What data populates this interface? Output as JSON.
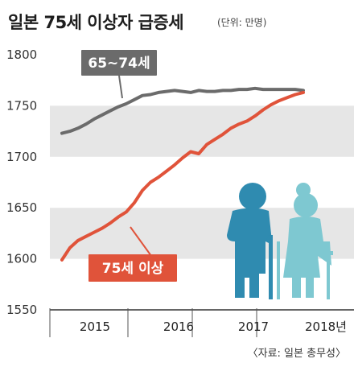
{
  "header": {
    "title": "일본 75세 이상자 급증세",
    "unit": "(단위: 만명)"
  },
  "footer": {
    "source": "〈자료: 일본 총무성〉"
  },
  "colors": {
    "band": "#e6e6e6",
    "series_65_74": "#6b6b6b",
    "series_75_plus": "#e0533a",
    "figure_left": "#2f8bb0",
    "figure_right": "#7ec8d1"
  },
  "illustration": {
    "icons": [
      "elderly-man-icon",
      "elderly-woman-icon"
    ]
  },
  "chart_data": {
    "type": "line",
    "title": "일본 75세 이상자 급증세",
    "ylim": [
      1550,
      1800
    ],
    "yticks": [
      1550,
      1600,
      1650,
      1700,
      1750,
      1800
    ],
    "xlim": [
      0,
      35
    ],
    "xtick_labels": [
      {
        "x": 4,
        "label": "2015"
      },
      {
        "x": 12,
        "label": "2016"
      },
      {
        "x": 20,
        "label": "2017"
      },
      {
        "x": 28,
        "label": "2018년"
      }
    ],
    "year_boundaries": [
      8,
      16,
      24
    ],
    "series": [
      {
        "name": "65~74세",
        "x": [
          0,
          1,
          2,
          3,
          4,
          5,
          6,
          7,
          8,
          9,
          10,
          11,
          12,
          13,
          14,
          15,
          16,
          17,
          18,
          19,
          20,
          21,
          22,
          23,
          24,
          25,
          26,
          27,
          28,
          29,
          30
        ],
        "values": [
          1723,
          1725,
          1728,
          1732,
          1737,
          1741,
          1745,
          1749,
          1752,
          1756,
          1760,
          1761,
          1763,
          1764,
          1765,
          1764,
          1763,
          1765,
          1764,
          1764,
          1765,
          1765,
          1766,
          1766,
          1767,
          1766,
          1766,
          1766,
          1766,
          1766,
          1765
        ]
      },
      {
        "name": "75세 이상",
        "x": [
          0,
          1,
          2,
          3,
          4,
          5,
          6,
          7,
          8,
          9,
          10,
          11,
          12,
          13,
          14,
          15,
          16,
          17,
          18,
          19,
          20,
          21,
          22,
          23,
          24,
          25,
          26,
          27,
          28,
          29,
          30
        ],
        "values": [
          1599,
          1611,
          1618,
          1622,
          1626,
          1630,
          1635,
          1641,
          1646,
          1655,
          1667,
          1675,
          1680,
          1686,
          1692,
          1699,
          1705,
          1703,
          1712,
          1717,
          1722,
          1728,
          1732,
          1735,
          1740,
          1746,
          1751,
          1755,
          1758,
          1761,
          1763
        ]
      }
    ]
  }
}
